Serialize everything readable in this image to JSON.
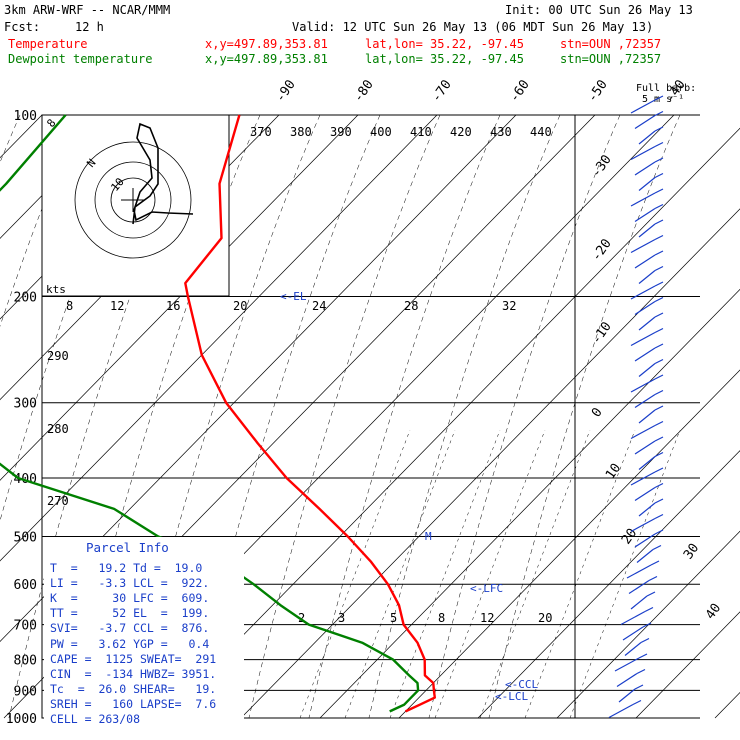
{
  "header": {
    "model": "3km ARW-WRF -- NCAR/MMM",
    "init": "Init: 00 UTC Sun 26 May 13",
    "fcst_label": "Fcst:",
    "fcst_value": "12 h",
    "valid": "Valid: 12 UTC Sun 26 May 13 (06 MDT Sun 26 May 13)",
    "temp_label": "Temperature",
    "dew_label": "Dewpoint temperature",
    "xy": "x,y=497.89,353.81",
    "latlon": "lat,lon= 35.22, -97.45",
    "stn": "stn=OUN ,72357"
  },
  "barb_key": {
    "line1": "Full barb:",
    "line2": "5 m s⁻¹"
  },
  "colors": {
    "temperature": "#ff0000",
    "dewpoint": "#008000",
    "parcel": "#1a3ec9",
    "grid": "#000000"
  },
  "hodograph": {
    "label": "kts",
    "speed_rings": [
      "8",
      "12",
      "16",
      "20",
      "24",
      "28",
      "32"
    ],
    "ring_labels": [
      "8",
      "N",
      "10"
    ]
  },
  "labels": {
    "el": "<-EL",
    "lfc": "<-LFC",
    "ccl": "<-CCL",
    "lcl": "<-LCL",
    "m": "M"
  },
  "parcel_info": {
    "title": "Parcel Info",
    "rows": [
      "T  =   19.2 Td =  19.0",
      "LI =   -3.3 LCL =  922.",
      "K  =     30 LFC =  609.",
      "TT =     52 EL  =  199.",
      "SVI=   -3.7 CCL =  876.",
      "PW =   3.62 YGP =   0.4",
      "CAPE =  1125 SWEAT=  291",
      "CIN  =  -134 HWBZ= 3951.",
      "Tc  =  26.0 SHEAR=   19.",
      "SREH =   160 LAPSE=  7.6",
      "CELL = 263/08"
    ]
  },
  "chart_data": {
    "type": "line",
    "title": "",
    "xlabel": "",
    "ylabel": "",
    "ylim": [
      1000,
      100
    ],
    "pressure_levels": [
      100,
      200,
      300,
      400,
      500,
      600,
      700,
      800,
      900,
      1000
    ],
    "temperature_top_labels": [
      "-90",
      "-80",
      "-70",
      "-60",
      "-50",
      "-40"
    ],
    "temperature_right_labels": [
      "-30",
      "-20",
      "-10",
      "0",
      "10",
      "20",
      "30",
      "40"
    ],
    "theta_e_labels": [
      "370",
      "380",
      "390",
      "400",
      "410",
      "420",
      "430",
      "440"
    ],
    "theta_left_labels": [
      "290",
      "280",
      "270"
    ],
    "mixing_ratio_labels": [
      "2",
      "3",
      "5",
      "8",
      "12",
      "20"
    ],
    "series": [
      {
        "name": "Temperature",
        "points": [
          [
            100,
            -75
          ],
          [
            130,
            -69
          ],
          [
            160,
            -62
          ],
          [
            190,
            -61
          ],
          [
            200,
            -59
          ],
          [
            250,
            -50
          ],
          [
            300,
            -41
          ],
          [
            350,
            -32
          ],
          [
            400,
            -24
          ],
          [
            450,
            -16
          ],
          [
            500,
            -9
          ],
          [
            550,
            -3
          ],
          [
            600,
            2
          ],
          [
            650,
            6
          ],
          [
            700,
            9
          ],
          [
            750,
            13
          ],
          [
            800,
            16
          ],
          [
            850,
            18
          ],
          [
            875,
            20
          ],
          [
            900,
            21
          ],
          [
            925,
            22
          ],
          [
            950,
            21
          ],
          [
            975,
            20
          ]
        ]
      },
      {
        "name": "Dewpoint temperature",
        "points": [
          [
            100,
            -97
          ],
          [
            130,
            -96
          ],
          [
            160,
            -96
          ],
          [
            190,
            -92
          ],
          [
            200,
            -91
          ],
          [
            230,
            -85
          ],
          [
            260,
            -84
          ],
          [
            275,
            -89
          ],
          [
            300,
            -80
          ],
          [
            350,
            -68
          ],
          [
            400,
            -58
          ],
          [
            450,
            -42
          ],
          [
            500,
            -33
          ],
          [
            550,
            -22
          ],
          [
            600,
            -15
          ],
          [
            650,
            -9
          ],
          [
            700,
            -3
          ],
          [
            750,
            6
          ],
          [
            800,
            12
          ],
          [
            850,
            16
          ],
          [
            875,
            18
          ],
          [
            900,
            19
          ],
          [
            925,
            19
          ],
          [
            950,
            19
          ],
          [
            975,
            18
          ]
        ]
      }
    ]
  }
}
